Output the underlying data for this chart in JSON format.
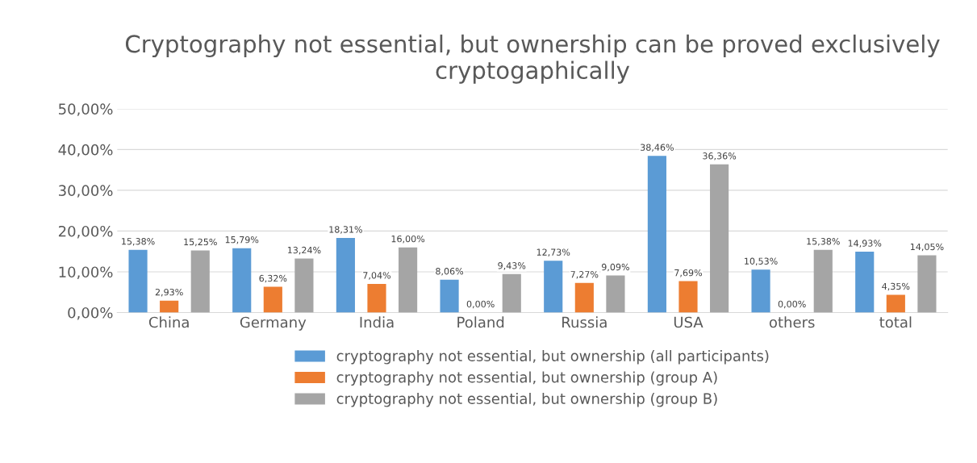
{
  "chart_data": {
    "type": "bar",
    "title": "Cryptography not essential, but ownership can be proved exclusively cryptogaphically",
    "categories": [
      "China",
      "Germany",
      "India",
      "Poland",
      "Russia",
      "USA",
      "others",
      "total"
    ],
    "series": [
      {
        "name": "cryptography not essential, but ownership (all participants)",
        "color": "#5b9bd5",
        "values": [
          15.38,
          15.79,
          18.31,
          8.06,
          12.73,
          38.46,
          10.53,
          14.93
        ],
        "value_labels": [
          "15,38%",
          "15,79%",
          "18,31%",
          "8,06%",
          "12,73%",
          "38,46%",
          "10,53%",
          "14,93%"
        ]
      },
      {
        "name": "cryptography not essential, but ownership (group A)",
        "color": "#ed7d31",
        "values": [
          2.93,
          6.32,
          7.04,
          0.0,
          7.27,
          7.69,
          0.0,
          4.35
        ],
        "value_labels": [
          "2,93%",
          "6,32%",
          "7,04%",
          "0,00%",
          "7,27%",
          "7,69%",
          "0,00%",
          "4,35%"
        ]
      },
      {
        "name": "cryptography not essential, but ownership (group B)",
        "color": "#a5a5a5",
        "values": [
          15.25,
          13.24,
          16.0,
          9.43,
          9.09,
          36.36,
          15.38,
          14.05
        ],
        "value_labels": [
          "15,25%",
          "13,24%",
          "16,00%",
          "9,43%",
          "9,09%",
          "36,36%",
          "15,38%",
          "14,05%"
        ]
      }
    ],
    "ylim": [
      0,
      50
    ],
    "yticks": [
      {
        "value": 0,
        "label": "0,00%"
      },
      {
        "value": 10,
        "label": "10,00%"
      },
      {
        "value": 20,
        "label": "20,00%"
      },
      {
        "value": 30,
        "label": "30,00%"
      },
      {
        "value": 40,
        "label": "40,00%"
      },
      {
        "value": 50,
        "label": "50,00%"
      }
    ],
    "grid": "y",
    "legend": "bottom"
  }
}
